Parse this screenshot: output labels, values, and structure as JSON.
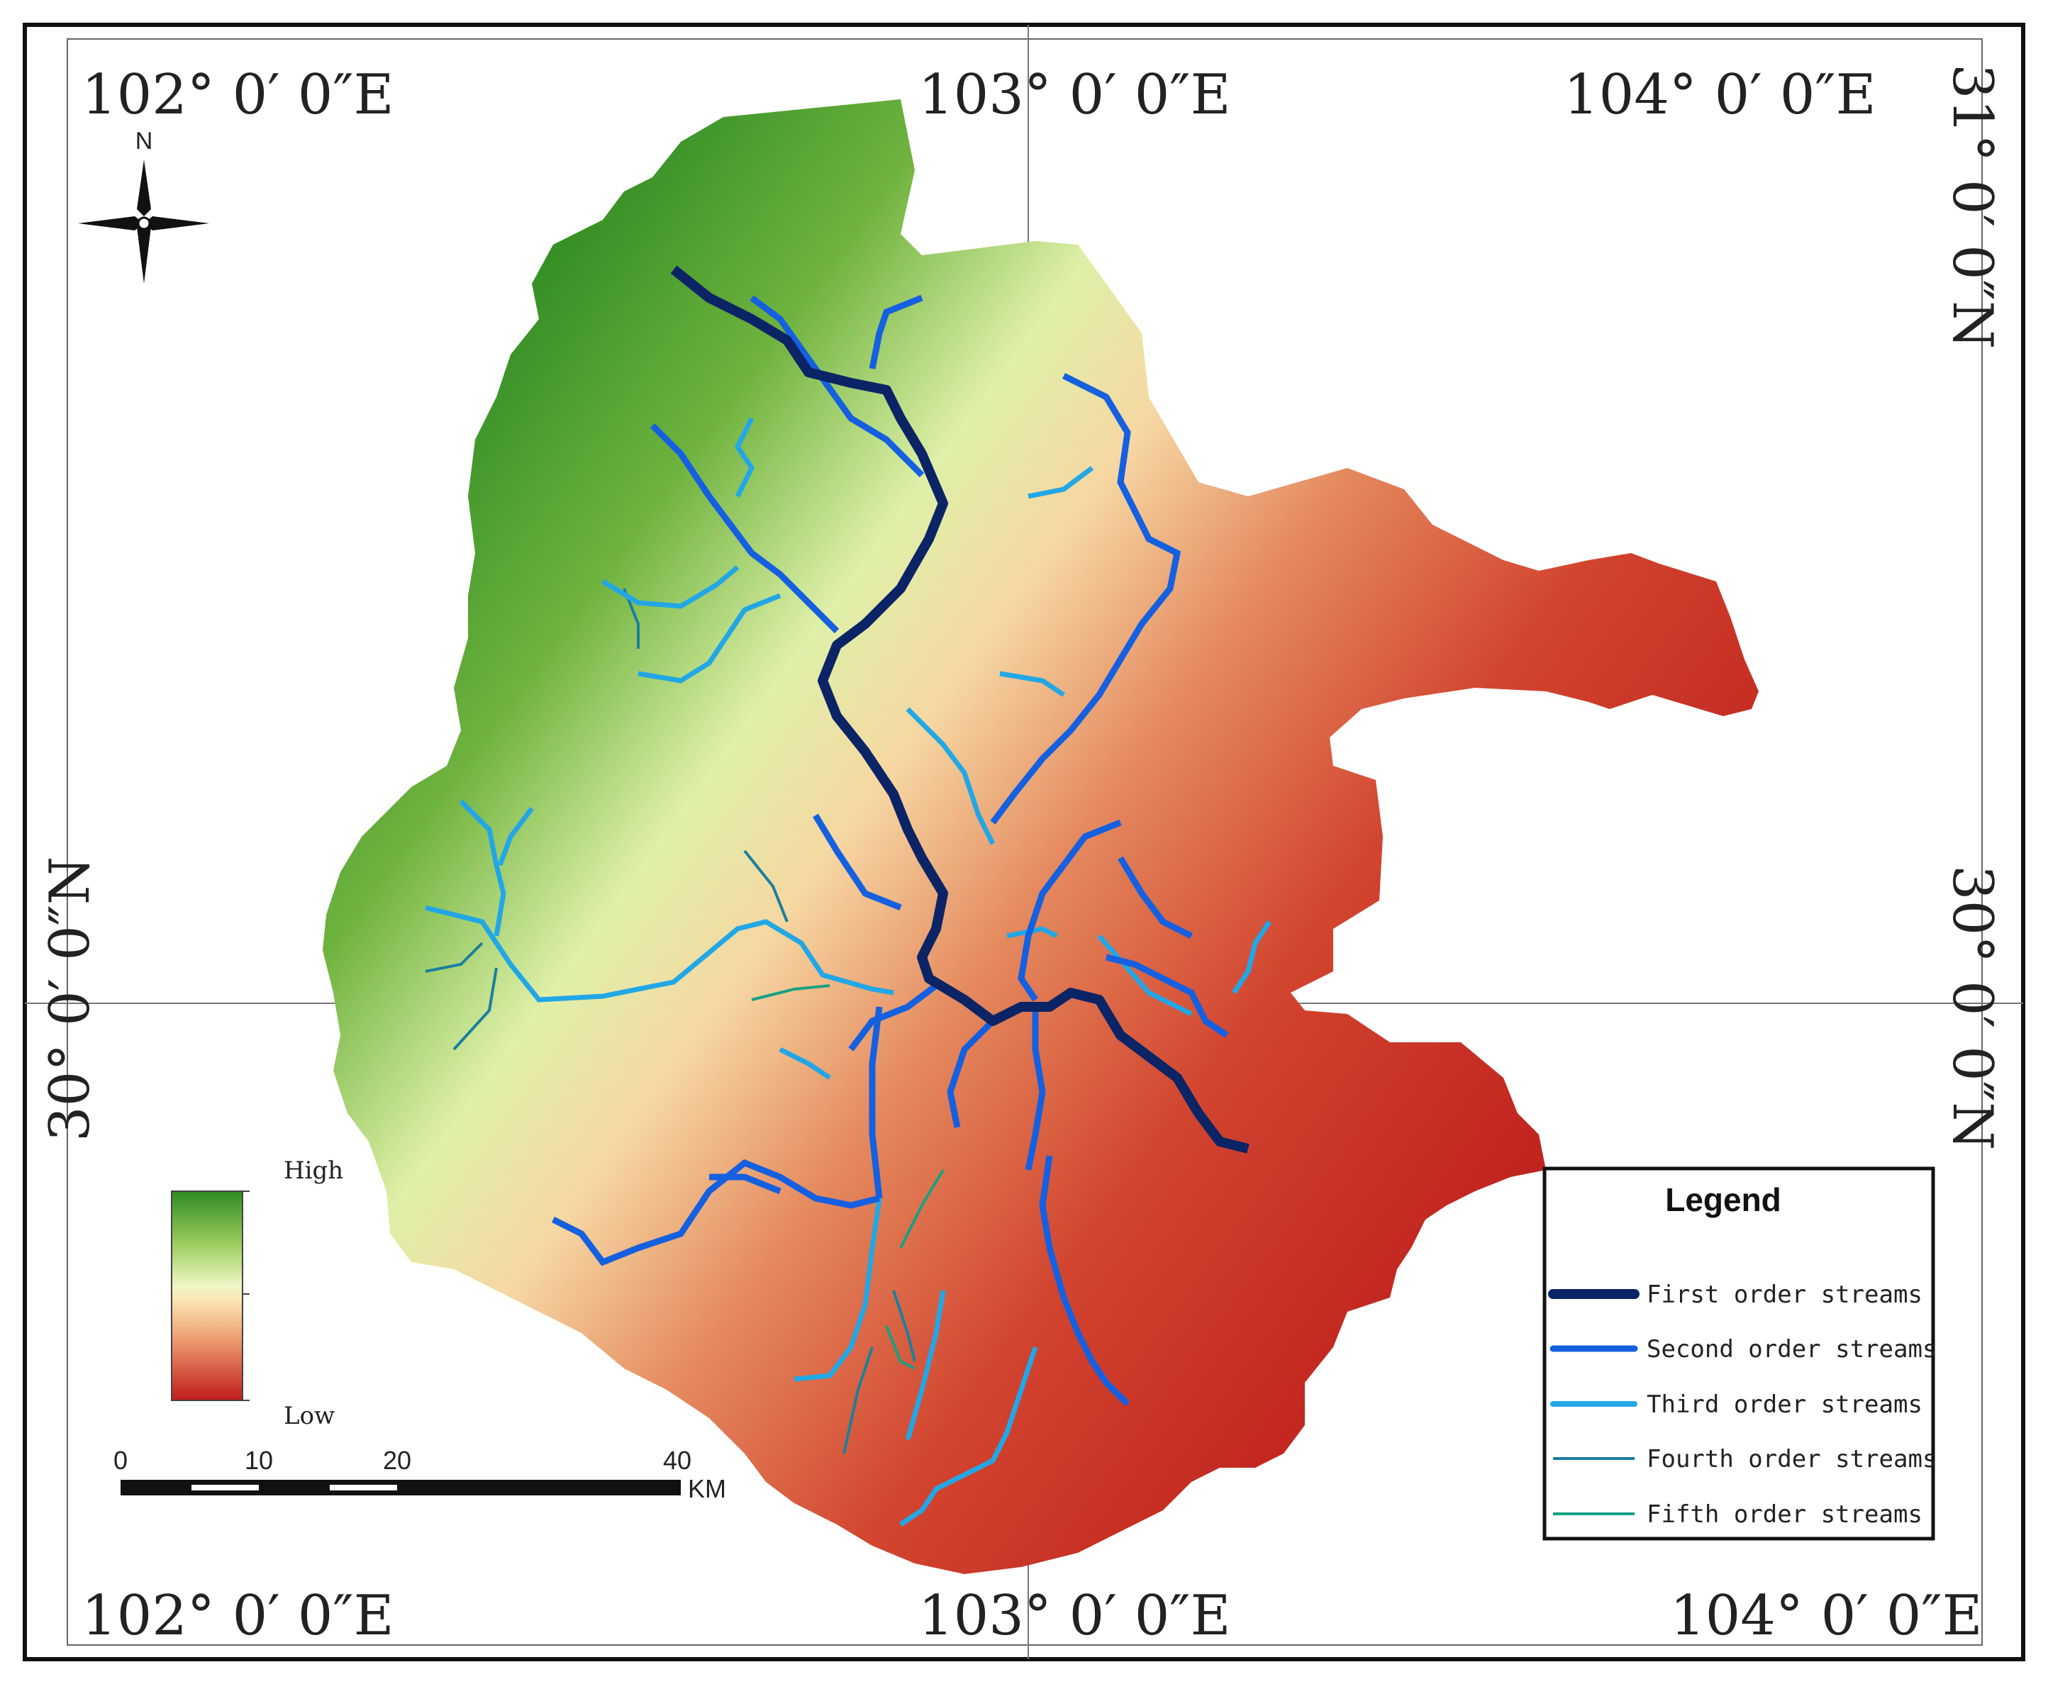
{
  "coordinates": {
    "top_left": "102°  0′ 0″E",
    "top_mid": "103°  0′ 0″E",
    "top_right": "104°  0′ 0″E",
    "bottom_left": "102°  0′ 0″E",
    "bottom_mid": "103°  0′ 0″E",
    "bottom_right": "104°  0′ 0″E",
    "right_top": "31°  0′ 0″N",
    "right_mid": "30°  0′ 0″N",
    "left_mid": "30°  0′ 0″N"
  },
  "north_arrow": {
    "label": "N",
    "icon": "compass-rose-icon"
  },
  "elevation_ramp": {
    "high_label": "High",
    "low_label": "Low",
    "colors": [
      "#2e8b22",
      "#7dbb4a",
      "#dff0a8",
      "#fbe6b4",
      "#eea072",
      "#d9533a",
      "#c01b1b"
    ]
  },
  "scale_bar": {
    "ticks": [
      "0",
      "10",
      "20",
      "40"
    ],
    "unit": "KM"
  },
  "legend": {
    "title": "Legend",
    "items": [
      {
        "label": "First order streams",
        "color": "#0b2466"
      },
      {
        "label": "Second order streams",
        "color": "#1560e0"
      },
      {
        "label": "Third order streams",
        "color": "#22a7e6"
      },
      {
        "label": "Fourth order streams",
        "color": "#1a7f9e"
      },
      {
        "label": "Fifth order streams",
        "color": "#17a084"
      }
    ]
  }
}
